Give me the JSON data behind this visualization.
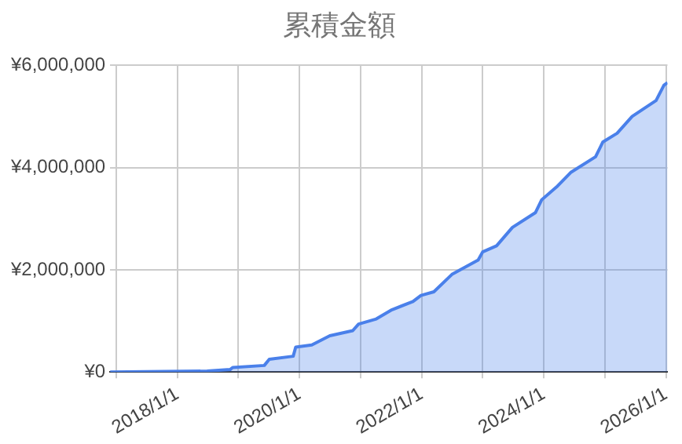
{
  "chart_data": {
    "type": "area",
    "title": "累積金額",
    "x": [
      "2016-11-25",
      "2018-06-28",
      "2018-11-13",
      "2018-11-28",
      "2019-06-05",
      "2019-07-05",
      "2019-11-25",
      "2019-12-10",
      "2020-03-15",
      "2020-07-01",
      "2020-11-15",
      "2020-12-20",
      "2021-04-05",
      "2021-07-08",
      "2021-11-10",
      "2021-12-28",
      "2022-03-15",
      "2022-07-01",
      "2022-12-05",
      "2023-01-01",
      "2023-03-25",
      "2023-06-28",
      "2023-11-13",
      "2023-12-20",
      "2024-03-18",
      "2024-06-13",
      "2024-11-06",
      "2024-12-20",
      "2025-03-15",
      "2025-06-13",
      "2025-11-03",
      "2025-12-20",
      "2026-01-10"
    ],
    "series": [
      {
        "color": "#4a80ea",
        "values": [
          0,
          20000,
          50000,
          90000,
          130000,
          250000,
          310000,
          490000,
          530000,
          710000,
          810000,
          940000,
          1040000,
          1220000,
          1380000,
          1500000,
          1570000,
          1910000,
          2190000,
          2350000,
          2470000,
          2830000,
          3120000,
          3370000,
          3620000,
          3910000,
          4210000,
          4500000,
          4670000,
          5000000,
          5310000,
          5610000,
          5660000
        ]
      }
    ],
    "xlim": [
      "2016-11-25",
      "2026-01-10"
    ],
    "xticks": [
      {
        "value": "2017-01-01",
        "label": null
      },
      {
        "value": "2018-01-01",
        "label": "2018/1/1"
      },
      {
        "value": "2019-01-01",
        "label": null
      },
      {
        "value": "2020-01-01",
        "label": "2020/1/1"
      },
      {
        "value": "2021-01-01",
        "label": null
      },
      {
        "value": "2022-01-01",
        "label": "2022/1/1"
      },
      {
        "value": "2023-01-01",
        "label": null
      },
      {
        "value": "2024-01-01",
        "label": "2024/1/1"
      },
      {
        "value": "2025-01-01",
        "label": null
      },
      {
        "value": "2026-01-01",
        "label": "2026/1/1"
      }
    ],
    "ylim": [
      0,
      6000000
    ],
    "yticks": [
      {
        "value": 0,
        "label": "¥0"
      },
      {
        "value": 2000000,
        "label": "¥2,000,000"
      },
      {
        "value": 4000000,
        "label": "¥4,000,000"
      },
      {
        "value": 6000000,
        "label": "¥6,000,000"
      }
    ],
    "grid": true,
    "legend": false
  }
}
